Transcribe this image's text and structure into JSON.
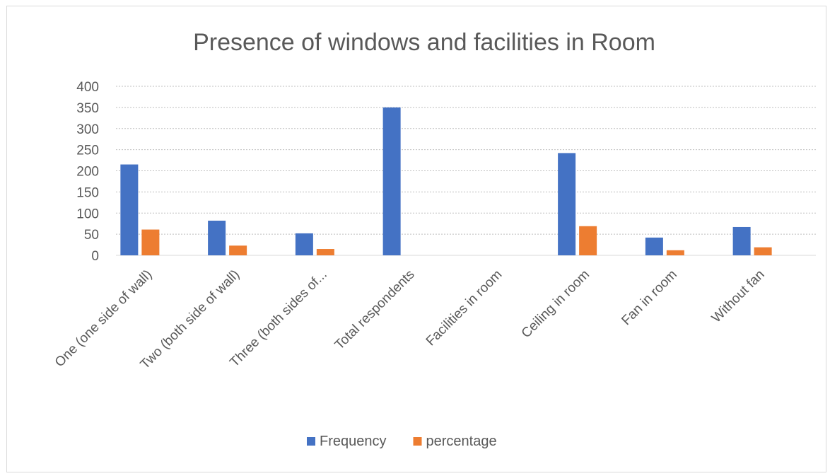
{
  "chart_data": {
    "type": "bar",
    "title": "Presence of windows and facilities in Room",
    "categories": [
      "One (one side of wall)",
      "Two (both side of wall)",
      "Three (both sides of...",
      "Total respondents",
      "Facilities in room",
      "Ceiling in room",
      "Fan in room",
      "Without fan"
    ],
    "series": [
      {
        "name": "Frequency",
        "color": "#4472c4",
        "values": [
          215,
          82,
          52,
          350,
          null,
          242,
          42,
          67
        ]
      },
      {
        "name": "percentage",
        "color": "#ed7d31",
        "values": [
          61,
          23,
          15,
          null,
          null,
          69,
          12,
          19
        ]
      }
    ],
    "ylim": [
      0,
      400
    ],
    "yticks": [
      0,
      50,
      100,
      150,
      200,
      250,
      300,
      350,
      400
    ],
    "grid": true,
    "legend_position": "bottom"
  }
}
